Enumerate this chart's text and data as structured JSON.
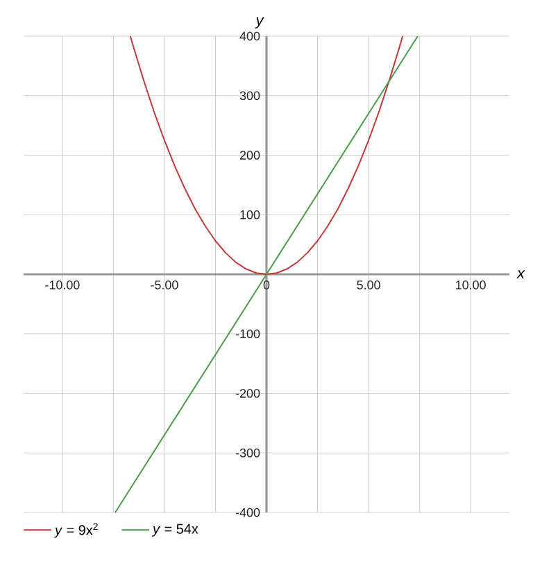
{
  "chart_data": {
    "type": "line",
    "xlabel": "x",
    "ylabel": "y",
    "xlim": [
      -11.9,
      11.9
    ],
    "ylim": [
      -400,
      400
    ],
    "xticks": [
      {
        "value": -10,
        "label": "-10.00"
      },
      {
        "value": -7.5,
        "label": null
      },
      {
        "value": -5,
        "label": "-5.00"
      },
      {
        "value": -2.5,
        "label": null
      },
      0,
      {
        "value": 2.5,
        "label": null
      },
      {
        "value": 5,
        "label": "5.00"
      },
      {
        "value": 7.5,
        "label": null
      },
      {
        "value": 10,
        "label": "10.00"
      }
    ],
    "yticks": [
      -400,
      -300,
      -200,
      -100,
      100,
      200,
      300,
      400
    ],
    "grid": true,
    "legend": "bottom left",
    "marker": "none",
    "line_style": "solid",
    "series": [
      {
        "name": "*y* = 9x$^{2}$",
        "color": "#c0393b",
        "x": [
          -6.67,
          -6.5,
          -6,
          -5.5,
          -5,
          -4.5,
          -4,
          -3.5,
          -3,
          -2.5,
          -2,
          -1.5,
          -1,
          -0.5,
          0,
          0.5,
          1,
          1.5,
          2,
          2.5,
          3,
          3.5,
          4,
          4.5,
          5,
          5.5,
          6,
          6.5,
          6.67
        ],
        "values": [
          400,
          380,
          324,
          272,
          225,
          182,
          144,
          110,
          81,
          56,
          36,
          20,
          9,
          2,
          0,
          2,
          9,
          20,
          36,
          56,
          81,
          110,
          144,
          182,
          225,
          272,
          324,
          380,
          400
        ]
      },
      {
        "name": "*y* = 54x",
        "color": "#4c9a4c",
        "x": [
          -7.41,
          7.41
        ],
        "values": [
          -400,
          400
        ]
      }
    ]
  }
}
